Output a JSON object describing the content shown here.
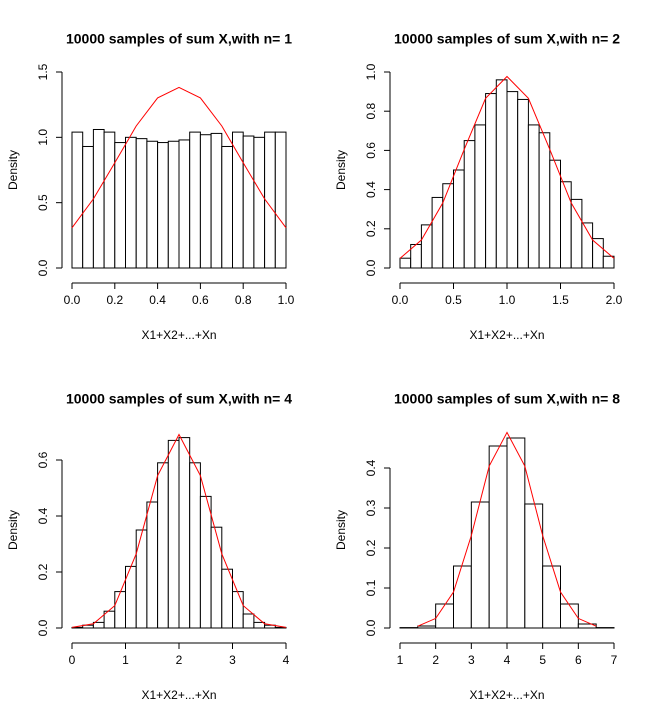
{
  "chart_data": [
    {
      "type": "histogram",
      "title": "10000 samples of sum X,with n= 1",
      "xlabel": "X1+X2+...+Xn",
      "ylabel": "Density",
      "bins": [
        0,
        0.05,
        0.1,
        0.15,
        0.2,
        0.25,
        0.3,
        0.35,
        0.4,
        0.45,
        0.5,
        0.55,
        0.6,
        0.65,
        0.7,
        0.75,
        0.8,
        0.85,
        0.9,
        0.95,
        1
      ],
      "values": [
        1.04,
        0.93,
        1.06,
        1.04,
        0.96,
        1.0,
        0.99,
        0.97,
        0.96,
        0.97,
        0.98,
        1.04,
        1.02,
        1.03,
        0.93,
        1.04,
        1.01,
        1.0,
        1.04,
        1.04
      ],
      "color": "#ffffff",
      "curve": {
        "color": "#ff0000",
        "x": [
          0,
          0.1,
          0.2,
          0.3,
          0.4,
          0.5,
          0.6,
          0.7,
          0.8,
          0.9,
          1
        ],
        "values": [
          0.308,
          0.529,
          0.805,
          1.087,
          1.302,
          1.382,
          1.302,
          1.087,
          0.805,
          0.529,
          0.308
        ]
      },
      "xlim": [
        0,
        1
      ],
      "ylim": [
        0,
        1.5
      ],
      "xticks": [
        {
          "value": 0,
          "label": "0.0"
        },
        0.2,
        0.4,
        0.6,
        0.8,
        {
          "value": 1,
          "label": "1.0"
        }
      ],
      "yticks": [
        {
          "value": 0,
          "label": "0.0"
        },
        0.5,
        {
          "value": 1,
          "label": "1.0"
        },
        1.5
      ]
    },
    {
      "type": "histogram",
      "title": "10000 samples of sum X,with n= 2",
      "xlabel": "X1+X2+...+Xn",
      "ylabel": "Density",
      "bins": [
        0,
        0.1,
        0.2,
        0.3,
        0.4,
        0.5,
        0.6,
        0.7,
        0.8,
        0.9,
        1,
        1.1,
        1.2,
        1.3,
        1.4,
        1.5,
        1.6,
        1.7,
        1.8,
        1.9,
        2
      ],
      "values": [
        0.05,
        0.12,
        0.22,
        0.36,
        0.43,
        0.5,
        0.65,
        0.73,
        0.89,
        0.96,
        0.9,
        0.86,
        0.73,
        0.69,
        0.55,
        0.44,
        0.35,
        0.23,
        0.15,
        0.06
      ],
      "color": "#ffffff",
      "curve": {
        "color": "#ff0000",
        "x": [
          0,
          0.2,
          0.4,
          0.6,
          0.8,
          1,
          1.2,
          1.4,
          1.6,
          1.8,
          2
        ],
        "values": [
          0.049,
          0.143,
          0.332,
          0.605,
          0.866,
          0.977,
          0.866,
          0.605,
          0.332,
          0.143,
          0.049
        ]
      },
      "xlim": [
        0,
        2
      ],
      "ylim": [
        0,
        1
      ],
      "xticks": [
        {
          "value": 0,
          "label": "0.0"
        },
        0.5,
        {
          "value": 1,
          "label": "1.0"
        },
        1.5,
        {
          "value": 2,
          "label": "2.0"
        }
      ],
      "yticks": [
        {
          "value": 0,
          "label": "0.0"
        },
        0.2,
        0.4,
        0.6,
        0.8,
        {
          "value": 1,
          "label": "1.0"
        }
      ]
    },
    {
      "type": "histogram",
      "title": "10000 samples of sum X,with n= 4",
      "xlabel": "X1+X2+...+Xn",
      "ylabel": "Density",
      "bins": [
        0,
        0.2,
        0.4,
        0.6,
        0.8,
        1,
        1.2,
        1.4,
        1.6,
        1.8,
        2,
        2.2,
        2.4,
        2.6,
        2.8,
        3,
        3.2,
        3.4,
        3.6,
        3.8,
        4
      ],
      "values": [
        0.002,
        0.01,
        0.02,
        0.06,
        0.13,
        0.22,
        0.35,
        0.45,
        0.59,
        0.67,
        0.68,
        0.59,
        0.47,
        0.36,
        0.21,
        0.13,
        0.05,
        0.02,
        0.01,
        0.002
      ],
      "color": "#ffffff",
      "curve": {
        "color": "#ff0000",
        "x": [
          0,
          0.4,
          0.8,
          1.2,
          1.6,
          2,
          2.4,
          2.8,
          3.2,
          3.6,
          4
        ],
        "values": [
          0.002,
          0.015,
          0.08,
          0.265,
          0.544,
          0.691,
          0.544,
          0.265,
          0.08,
          0.015,
          0.002
        ]
      },
      "xlim": [
        0,
        4
      ],
      "ylim": [
        0,
        0.7
      ],
      "xticks": [
        0,
        1,
        2,
        3,
        4
      ],
      "yticks": [
        {
          "value": 0,
          "label": "0.0"
        },
        0.2,
        0.4,
        0.6
      ]
    },
    {
      "type": "histogram",
      "title": "10000 samples of sum X,with n= 8",
      "xlabel": "X1+X2+...+Xn",
      "ylabel": "Density",
      "bins": [
        1,
        1.5,
        2,
        2.5,
        3,
        3.5,
        4,
        4.5,
        5,
        5.5,
        6,
        6.5,
        7
      ],
      "values": [
        0.001,
        0.005,
        0.06,
        0.155,
        0.315,
        0.455,
        0.475,
        0.31,
        0.155,
        0.06,
        0.01,
        0.001
      ],
      "color": "#ffffff",
      "curve": {
        "color": "#ff0000",
        "x": [
          1.5,
          2,
          2.5,
          3,
          3.5,
          4,
          4.5,
          5,
          5.5,
          6,
          6.5
        ],
        "values": [
          0.0045,
          0.024,
          0.09,
          0.231,
          0.405,
          0.489,
          0.405,
          0.231,
          0.09,
          0.024,
          0.0045
        ]
      },
      "xlim": [
        1,
        7
      ],
      "ylim": [
        0,
        0.49
      ],
      "xticks": [
        1,
        2,
        3,
        4,
        5,
        6,
        7
      ],
      "yticks": [
        {
          "value": 0,
          "label": "0.0"
        },
        0.1,
        0.2,
        0.3,
        0.4
      ]
    }
  ]
}
